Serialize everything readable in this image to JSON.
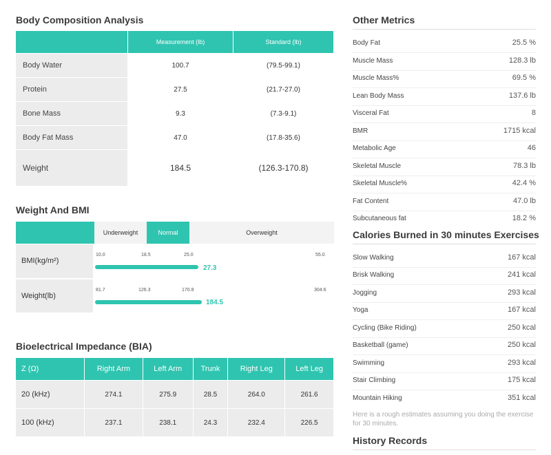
{
  "body_composition": {
    "title": "Body Composition Analysis",
    "headers": [
      "",
      "Measurement (lb)",
      "Standard (lb)"
    ],
    "rows": [
      {
        "label": "Body Water",
        "measurement": "100.7",
        "standard": "(79.5-99.1)"
      },
      {
        "label": "Protein",
        "measurement": "27.5",
        "standard": "(21.7-27.0)"
      },
      {
        "label": "Bone Mass",
        "measurement": "9.3",
        "standard": "(7.3-9.1)"
      },
      {
        "label": "Body Fat Mass",
        "measurement": "47.0",
        "standard": "(17.8-35.6)"
      },
      {
        "label": "Weight",
        "measurement": "184.5",
        "standard": "(126.3-170.8)"
      }
    ]
  },
  "weight_bmi": {
    "title": "Weight And BMI",
    "categories": [
      "Underweight",
      "Normal",
      "Overweight"
    ],
    "bmi": {
      "label": "BMI(kg/m²)",
      "ticks": [
        "10.0",
        "18.5",
        "25.0",
        "55.0"
      ],
      "value": "27.3",
      "fill_fraction": 0.4
    },
    "weight": {
      "label": "Weight(lb)",
      "ticks": [
        "81.7",
        "126.3",
        "170.8",
        "304.6"
      ],
      "value": "184.5",
      "fill_fraction": 0.4
    }
  },
  "bia": {
    "title": "Bioelectrical Impedance (BIA)",
    "headers": [
      "Z (Ω)",
      "Right Arm",
      "Left Arm",
      "Trunk",
      "Right Leg",
      "Left Leg"
    ],
    "rows": [
      [
        "20 (kHz)",
        "274.1",
        "275.9",
        "28.5",
        "264.0",
        "261.6"
      ],
      [
        "100 (kHz)",
        "237.1",
        "238.1",
        "24.3",
        "232.4",
        "226.5"
      ]
    ]
  },
  "other_metrics": {
    "title": "Other Metrics",
    "items": [
      {
        "label": "Body Fat",
        "value": "25.5 %"
      },
      {
        "label": "Muscle Mass",
        "value": "128.3 lb"
      },
      {
        "label": "Muscle Mass%",
        "value": "69.5 %"
      },
      {
        "label": "Lean Body Mass",
        "value": "137.6 lb"
      },
      {
        "label": "Visceral Fat",
        "value": "8"
      },
      {
        "label": "BMR",
        "value": "1715 kcal"
      },
      {
        "label": "Metabolic Age",
        "value": "46"
      },
      {
        "label": "Skeletal Muscle",
        "value": "78.3 lb"
      },
      {
        "label": "Skeletal Muscle%",
        "value": "42.4 %"
      },
      {
        "label": "Fat Content",
        "value": "47.0 lb"
      },
      {
        "label": "Subcutaneous fat",
        "value": "18.2 %"
      }
    ]
  },
  "calories": {
    "title": "Calories Burned in 30 minutes Exercises",
    "items": [
      {
        "label": "Slow Walking",
        "value": "167 kcal"
      },
      {
        "label": "Brisk Walking",
        "value": "241 kcal"
      },
      {
        "label": "Jogging",
        "value": "293 kcal"
      },
      {
        "label": "Yoga",
        "value": "167 kcal"
      },
      {
        "label": "Cycling (Bike Riding)",
        "value": "250 kcal"
      },
      {
        "label": "Basketball (game)",
        "value": "250 kcal"
      },
      {
        "label": "Swimming",
        "value": "293 kcal"
      },
      {
        "label": "Stair Climbing",
        "value": "175 kcal"
      },
      {
        "label": "Mountain Hiking",
        "value": "351 kcal"
      }
    ],
    "note": "Here is a rough estimates assuming you doing the exercise for 30 minutes."
  },
  "history": {
    "title": "History Records"
  },
  "colors": {
    "accent": "#2ec4b0",
    "row_bg": "#ececec"
  }
}
